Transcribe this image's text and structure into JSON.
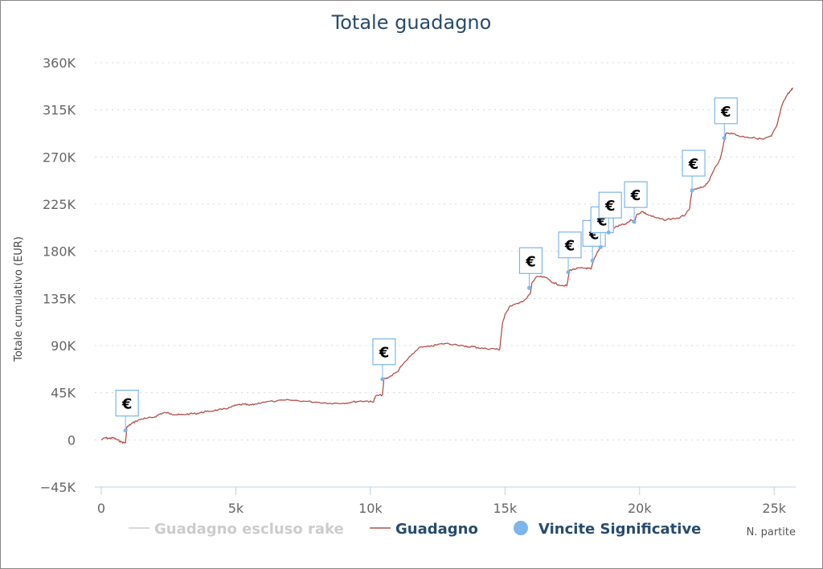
{
  "chart_data": {
    "type": "line",
    "title": "Totale guadagno",
    "xlabel": "N. partite",
    "ylabel": "Totale cumulativo (EUR)",
    "xlim": [
      0,
      25800
    ],
    "ylim": [
      -45000,
      360000
    ],
    "x_ticks": [
      0,
      5000,
      10000,
      15000,
      20000,
      25000
    ],
    "x_tick_labels": [
      "0",
      "5k",
      "10k",
      "15k",
      "20k",
      "25k"
    ],
    "y_ticks": [
      -45000,
      0,
      45000,
      90000,
      135000,
      180000,
      225000,
      270000,
      315000,
      360000
    ],
    "y_tick_labels": [
      "−45K",
      "0",
      "45K",
      "90K",
      "135K",
      "180K",
      "225K",
      "270K",
      "315K",
      "360K"
    ],
    "grid": "horizontal dotted",
    "legend_position": "bottom",
    "legend": [
      {
        "name": "Guadagno escluso rake",
        "color": "#cccccc",
        "marker": "line",
        "hidden": true
      },
      {
        "name": "Guadagno",
        "color": "#b5504c",
        "marker": "line"
      },
      {
        "name": "Vincite Significative",
        "color": "#7cb5ec",
        "marker": "circle"
      }
    ],
    "series": [
      {
        "name": "Guadagno",
        "color": "#b5504c",
        "points": [
          [
            0,
            0
          ],
          [
            150,
            2000
          ],
          [
            300,
            1500
          ],
          [
            450,
            2000
          ],
          [
            600,
            0
          ],
          [
            750,
            -2000
          ],
          [
            900,
            -3000
          ],
          [
            950,
            12000
          ],
          [
            1100,
            15000
          ],
          [
            1300,
            18000
          ],
          [
            1500,
            20000
          ],
          [
            1700,
            20500
          ],
          [
            2000,
            22000
          ],
          [
            2200,
            25000
          ],
          [
            2400,
            26000
          ],
          [
            2600,
            25000
          ],
          [
            2800,
            24000
          ],
          [
            3000,
            24000
          ],
          [
            3300,
            25000
          ],
          [
            3500,
            25000
          ],
          [
            3700,
            26000
          ],
          [
            3900,
            27000
          ],
          [
            4200,
            28000
          ],
          [
            4500,
            29000
          ],
          [
            4800,
            31000
          ],
          [
            5000,
            33000
          ],
          [
            5300,
            34000
          ],
          [
            5500,
            33000
          ],
          [
            5700,
            34000
          ],
          [
            6000,
            36000
          ],
          [
            6500,
            37000
          ],
          [
            7000,
            38000
          ],
          [
            7500,
            37000
          ],
          [
            8000,
            36000
          ],
          [
            8500,
            35000
          ],
          [
            9000,
            35000
          ],
          [
            9300,
            36000
          ],
          [
            9600,
            37000
          ],
          [
            9900,
            37000
          ],
          [
            10100,
            36000
          ],
          [
            10200,
            42000
          ],
          [
            10450,
            43000
          ],
          [
            10500,
            58000
          ],
          [
            10700,
            60000
          ],
          [
            11000,
            65000
          ],
          [
            11200,
            72000
          ],
          [
            11500,
            80000
          ],
          [
            11800,
            88000
          ],
          [
            12200,
            89000
          ],
          [
            12500,
            91000
          ],
          [
            12800,
            92000
          ],
          [
            13200,
            91000
          ],
          [
            13500,
            89000
          ],
          [
            13800,
            89000
          ],
          [
            14000,
            88000
          ],
          [
            14300,
            87000
          ],
          [
            14600,
            87000
          ],
          [
            14800,
            86000
          ],
          [
            14900,
            110000
          ],
          [
            15000,
            120000
          ],
          [
            15200,
            128000
          ],
          [
            15500,
            130000
          ],
          [
            15800,
            135000
          ],
          [
            15950,
            140000
          ],
          [
            16000,
            150000
          ],
          [
            16200,
            156000
          ],
          [
            16500,
            155000
          ],
          [
            16800,
            150000
          ],
          [
            17000,
            148000
          ],
          [
            17300,
            147000
          ],
          [
            17400,
            162000
          ],
          [
            17600,
            163000
          ],
          [
            17800,
            164000
          ],
          [
            18000,
            164000
          ],
          [
            18200,
            163000
          ],
          [
            18300,
            172000
          ],
          [
            18450,
            180000
          ],
          [
            18600,
            186000
          ],
          [
            18700,
            198000
          ],
          [
            18900,
            200000
          ],
          [
            19100,
            203000
          ],
          [
            19300,
            205000
          ],
          [
            19500,
            206000
          ],
          [
            19700,
            210000
          ],
          [
            19800,
            208000
          ],
          [
            19900,
            215000
          ],
          [
            20100,
            218000
          ],
          [
            20300,
            215000
          ],
          [
            20600,
            212000
          ],
          [
            20900,
            210000
          ],
          [
            21200,
            211000
          ],
          [
            21500,
            212000
          ],
          [
            21700,
            215000
          ],
          [
            21850,
            220000
          ],
          [
            21950,
            238000
          ],
          [
            22200,
            240000
          ],
          [
            22400,
            242000
          ],
          [
            22600,
            248000
          ],
          [
            22800,
            260000
          ],
          [
            23000,
            268000
          ],
          [
            23100,
            280000
          ],
          [
            23200,
            292000
          ],
          [
            23400,
            293000
          ],
          [
            23700,
            290000
          ],
          [
            24000,
            289000
          ],
          [
            24300,
            288000
          ],
          [
            24600,
            287000
          ],
          [
            24900,
            290000
          ],
          [
            25100,
            300000
          ],
          [
            25300,
            320000
          ],
          [
            25500,
            330000
          ],
          [
            25600,
            333000
          ],
          [
            25700,
            336000
          ]
        ]
      }
    ],
    "significant_wins": {
      "name": "Vincite Significative",
      "symbol": "€",
      "color": "#7cb5ec",
      "points": [
        [
          900,
          9000
        ],
        [
          10450,
          58000
        ],
        [
          15900,
          145000
        ],
        [
          17350,
          160000
        ],
        [
          18250,
          171000
        ],
        [
          18550,
          184000
        ],
        [
          18850,
          198000
        ],
        [
          19800,
          208000
        ],
        [
          21950,
          238000
        ],
        [
          23150,
          288000
        ]
      ]
    }
  }
}
